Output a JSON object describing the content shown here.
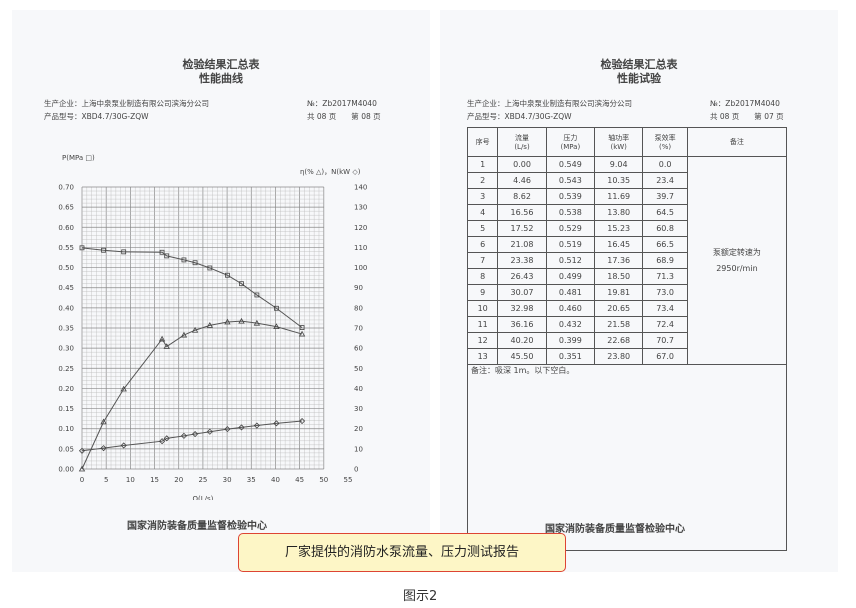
{
  "left": {
    "title1": "检验结果汇总表",
    "title2": "性能曲线",
    "company": "生产企业：上海中泉泵业制造有限公司滨海分公司",
    "model": "产品型号：XBD4.7/30G-ZQW",
    "number": "№：Zb2017M4040",
    "pages": "共 08 页　　第 08 页",
    "footer": "国家消防装备质量监督检验中心"
  },
  "right": {
    "title1": "检验结果汇总表",
    "title2": "性能试验",
    "company": "生产企业：上海中泉泵业制造有限公司滨海分公司",
    "model": "产品型号：XBD4.7/30G-ZQW",
    "number": "№：Zb2017M4040",
    "pages": "共 08 页　　第 07 页",
    "footer": "国家消防装备质量监督检验中心",
    "headers": [
      "序号",
      "流量\n(L/s)",
      "压力\n(MPa)",
      "轴功率\n(kW)",
      "泵效率\n(%)",
      "备注"
    ],
    "rows": [
      [
        "1",
        "0.00",
        "0.549",
        "9.04",
        "0.0"
      ],
      [
        "2",
        "4.46",
        "0.543",
        "10.35",
        "23.4"
      ],
      [
        "3",
        "8.62",
        "0.539",
        "11.69",
        "39.7"
      ],
      [
        "4",
        "16.56",
        "0.538",
        "13.80",
        "64.5"
      ],
      [
        "5",
        "17.52",
        "0.529",
        "15.23",
        "60.8"
      ],
      [
        "6",
        "21.08",
        "0.519",
        "16.45",
        "66.5"
      ],
      [
        "7",
        "23.38",
        "0.512",
        "17.36",
        "68.9"
      ],
      [
        "8",
        "26.43",
        "0.499",
        "18.50",
        "71.3"
      ],
      [
        "9",
        "30.07",
        "0.481",
        "19.81",
        "73.0"
      ],
      [
        "10",
        "32.98",
        "0.460",
        "20.65",
        "73.4"
      ],
      [
        "11",
        "36.16",
        "0.432",
        "21.58",
        "72.4"
      ],
      [
        "12",
        "40.20",
        "0.399",
        "22.68",
        "70.7"
      ],
      [
        "13",
        "45.50",
        "0.351",
        "23.80",
        "67.0"
      ]
    ],
    "remark": "泵额定转速为\n2950r/min",
    "note": "备注：吸深 1m。以下空白。"
  },
  "chart_data": {
    "type": "line",
    "xlabel": "Q(L/s)",
    "ylabel_left": "P(MPa □)",
    "ylabel_right": "η(% △)，N(kW ◇)",
    "xlim": [
      0,
      55
    ],
    "ylim_left": [
      0,
      0.7
    ],
    "ylim_right": [
      0,
      140
    ],
    "grid": true,
    "x": [
      0,
      4.46,
      8.62,
      16.56,
      17.52,
      21.08,
      23.38,
      26.43,
      30.07,
      32.98,
      36.16,
      40.2,
      45.5
    ],
    "series": [
      {
        "name": "P",
        "axis": "left",
        "marker": "square",
        "values": [
          0.549,
          0.543,
          0.539,
          0.538,
          0.529,
          0.519,
          0.512,
          0.499,
          0.481,
          0.46,
          0.432,
          0.399,
          0.351
        ]
      },
      {
        "name": "η",
        "axis": "right",
        "marker": "triangle",
        "values": [
          0,
          23.4,
          39.7,
          64.5,
          60.8,
          66.5,
          68.9,
          71.3,
          73,
          73.4,
          72.4,
          70.7,
          67
        ]
      },
      {
        "name": "N",
        "axis": "right",
        "marker": "diamond",
        "values": [
          9.04,
          10.35,
          11.69,
          13.8,
          15.23,
          16.45,
          17.36,
          18.5,
          19.81,
          20.65,
          21.58,
          22.68,
          23.8
        ]
      }
    ]
  },
  "caption": "厂家提供的消防水泵流量、压力测试报告",
  "figure_label": "图示2"
}
